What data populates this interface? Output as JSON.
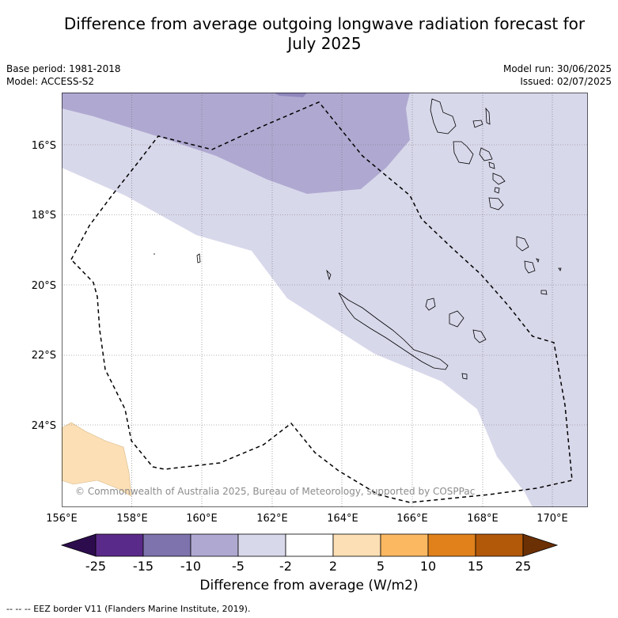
{
  "title_line1": "Difference from average outgoing longwave radiation forecast for",
  "title_line2": "July 2025",
  "meta": {
    "base_period": "Base period: 1981-2018",
    "model": "Model: ACCESS-S2",
    "model_run": "Model run: 30/06/2025",
    "issued": "Issued: 02/07/2025"
  },
  "map": {
    "lon_labels": [
      "156°E",
      "158°E",
      "160°E",
      "162°E",
      "164°E",
      "166°E",
      "168°E",
      "170°E"
    ],
    "lat_labels": [
      "16°S",
      "18°S",
      "20°S",
      "22°S",
      "24°S"
    ],
    "copyright": "© Commonwealth of Australia 2025, Bureau of Meteorology, supported by COSPPac"
  },
  "colorbar": {
    "ticks": [
      "-25",
      "-15",
      "-10",
      "-5",
      "-2",
      "2",
      "5",
      "10",
      "15",
      "25"
    ],
    "colors": [
      "#2d0c4d",
      "#5a2a8a",
      "#7e73ad",
      "#afa9d1",
      "#d8d8eb",
      "#ffffff",
      "#fddfb5",
      "#fbb861",
      "#e0811c",
      "#b25809",
      "#6b3004"
    ],
    "label": "Difference from average (W/m2)"
  },
  "footer": "-- -- -- EEZ border V11 (Flanders Marine Institute, 2019)."
}
